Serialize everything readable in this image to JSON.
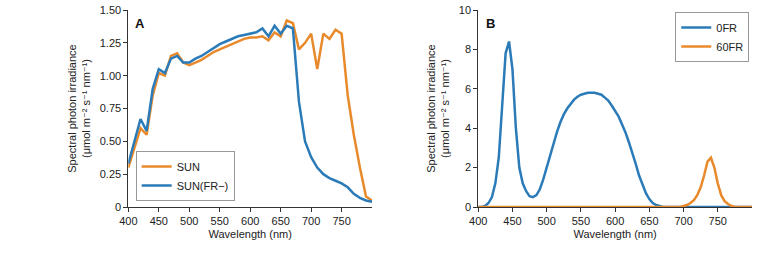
{
  "chart_data": [
    {
      "type": "line",
      "panel": "A",
      "x_label": "Wavelength (nm)",
      "y_label": "Spectral photon irradiance (μmol m⁻² s⁻¹ nm⁻¹)",
      "x": [
        400,
        410,
        420,
        430,
        440,
        450,
        460,
        470,
        480,
        490,
        500,
        510,
        520,
        530,
        540,
        550,
        560,
        570,
        580,
        590,
        600,
        610,
        620,
        630,
        640,
        650,
        660,
        670,
        680,
        690,
        700,
        710,
        720,
        730,
        740,
        750,
        760,
        770,
        780,
        790,
        800
      ],
      "series": [
        {
          "name": "SUN",
          "color": "#e8892b",
          "line_style": "solid",
          "values": [
            0.3,
            0.45,
            0.6,
            0.55,
            0.85,
            1.02,
            1.0,
            1.15,
            1.17,
            1.1,
            1.08,
            1.1,
            1.12,
            1.15,
            1.18,
            1.2,
            1.22,
            1.24,
            1.26,
            1.28,
            1.29,
            1.29,
            1.3,
            1.27,
            1.33,
            1.3,
            1.42,
            1.4,
            1.2,
            1.25,
            1.32,
            1.05,
            1.32,
            1.28,
            1.35,
            1.32,
            0.85,
            0.55,
            0.3,
            0.08,
            0.05
          ]
        },
        {
          "name": "SUN(FR−)",
          "color": "#2b7bb9",
          "line_style": "solid",
          "values": [
            0.33,
            0.5,
            0.67,
            0.58,
            0.9,
            1.05,
            1.02,
            1.13,
            1.15,
            1.1,
            1.1,
            1.13,
            1.15,
            1.18,
            1.21,
            1.24,
            1.26,
            1.28,
            1.3,
            1.31,
            1.32,
            1.33,
            1.36,
            1.3,
            1.38,
            1.32,
            1.38,
            1.36,
            0.8,
            0.5,
            0.38,
            0.3,
            0.25,
            0.22,
            0.2,
            0.18,
            0.15,
            0.1,
            0.07,
            0.05,
            0.04
          ]
        }
      ],
      "xlim": [
        400,
        800
      ],
      "xticks": [
        400,
        450,
        500,
        550,
        600,
        650,
        700,
        750
      ],
      "ylim": [
        0,
        1.5
      ],
      "yticks": [
        0,
        0.25,
        {
          "value": 0.5,
          "label": "0.50"
        },
        0.75,
        {
          "value": 1,
          "label": "1.00"
        },
        1.25,
        {
          "value": 1.5,
          "label": "1.50"
        }
      ],
      "grid": false,
      "legend": "lower left"
    },
    {
      "type": "line",
      "panel": "B",
      "x_label": "Wavelength (nm)",
      "y_label": "Spectral photon irradiance (μmol m⁻² s⁻¹ nm⁻¹)",
      "x": [
        400,
        405,
        410,
        415,
        420,
        425,
        430,
        435,
        440,
        445,
        450,
        455,
        460,
        465,
        470,
        475,
        480,
        485,
        490,
        495,
        500,
        505,
        510,
        515,
        520,
        525,
        530,
        535,
        540,
        545,
        550,
        555,
        560,
        565,
        570,
        575,
        580,
        585,
        590,
        595,
        600,
        605,
        610,
        615,
        620,
        625,
        630,
        635,
        640,
        645,
        650,
        655,
        660,
        665,
        670,
        675,
        680,
        685,
        690,
        695,
        700,
        705,
        710,
        715,
        720,
        725,
        730,
        735,
        740,
        745,
        750,
        755,
        760,
        765,
        770,
        775,
        780,
        785,
        790,
        795,
        800
      ],
      "series": [
        {
          "name": "0FR",
          "color": "#2b7bb9",
          "line_style": "solid",
          "values": [
            0,
            0,
            0.05,
            0.2,
            0.5,
            1.2,
            2.5,
            5.0,
            7.8,
            8.4,
            7.0,
            4.0,
            2.0,
            1.2,
            0.8,
            0.55,
            0.5,
            0.6,
            0.9,
            1.4,
            2.0,
            2.7,
            3.3,
            3.8,
            4.3,
            4.7,
            5.0,
            5.25,
            5.45,
            5.6,
            5.7,
            5.75,
            5.8,
            5.8,
            5.8,
            5.75,
            5.7,
            5.55,
            5.4,
            5.15,
            4.9,
            4.6,
            4.2,
            3.8,
            3.3,
            2.8,
            2.2,
            1.6,
            1.1,
            0.7,
            0.4,
            0.2,
            0.1,
            0.05,
            0,
            0,
            0,
            0,
            0,
            0,
            0,
            0,
            0,
            0,
            0,
            0,
            0,
            0,
            0,
            0,
            0,
            0,
            0,
            0,
            0,
            0,
            0,
            0,
            0,
            0,
            0
          ]
        },
        {
          "name": "60FR",
          "color": "#e8892b",
          "line_style": "solid",
          "values": [
            0,
            0,
            0,
            0,
            0,
            0,
            0,
            0,
            0,
            0,
            0,
            0,
            0,
            0,
            0,
            0,
            0,
            0,
            0,
            0,
            0,
            0,
            0,
            0,
            0,
            0,
            0,
            0,
            0,
            0,
            0,
            0,
            0,
            0,
            0,
            0,
            0,
            0,
            0,
            0,
            0,
            0,
            0,
            0,
            0,
            0,
            0,
            0,
            0,
            0,
            0,
            0,
            0,
            0,
            0,
            0,
            0,
            0,
            0,
            0,
            0.05,
            0.1,
            0.2,
            0.35,
            0.6,
            1.0,
            1.6,
            2.3,
            2.5,
            2.0,
            1.2,
            0.6,
            0.3,
            0.15,
            0.05,
            0,
            0,
            0,
            0,
            0,
            0
          ]
        }
      ],
      "xlim": [
        400,
        800
      ],
      "xticks": [
        400,
        450,
        500,
        550,
        600,
        650,
        700,
        750
      ],
      "ylim": [
        0,
        10
      ],
      "yticks": [
        0,
        2,
        4,
        6,
        8,
        10
      ],
      "grid": false,
      "legend": "upper right"
    }
  ]
}
